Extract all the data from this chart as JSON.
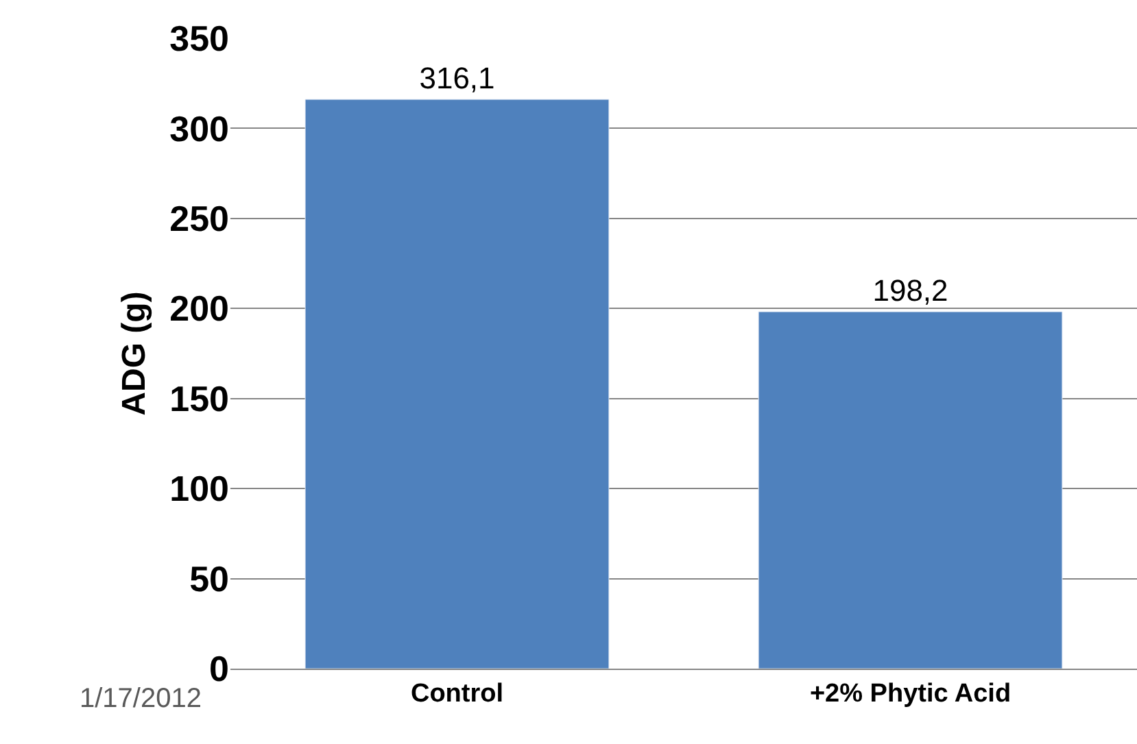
{
  "chart_data": {
    "type": "bar",
    "ylabel": "ADG (g)",
    "categories": [
      "Control",
      "+2% Phytic Acid"
    ],
    "values": [
      316.1,
      198.2
    ],
    "color": "#4f81bd",
    "value_labels": [
      "316,1",
      "198,2"
    ],
    "ylim": [
      0,
      350
    ],
    "yticks": [
      0,
      50,
      100,
      150,
      200,
      250,
      300,
      350
    ],
    "grid": "y",
    "annotations": [
      "1/17/2012"
    ]
  }
}
